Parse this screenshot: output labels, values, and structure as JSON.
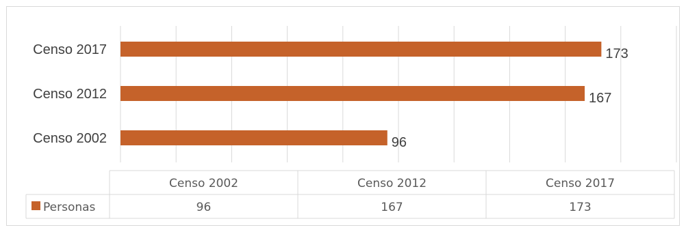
{
  "chart_data": {
    "type": "bar",
    "orientation": "horizontal",
    "categories": [
      "Censo 2002",
      "Censo 2012",
      "Censo 2017"
    ],
    "series": [
      {
        "name": "Personas",
        "values": [
          96,
          167,
          173
        ],
        "color": "#c5622a"
      }
    ],
    "xlim": [
      0,
      200
    ],
    "grid": true,
    "data_table": true,
    "legend_placement": "data-table-left"
  }
}
